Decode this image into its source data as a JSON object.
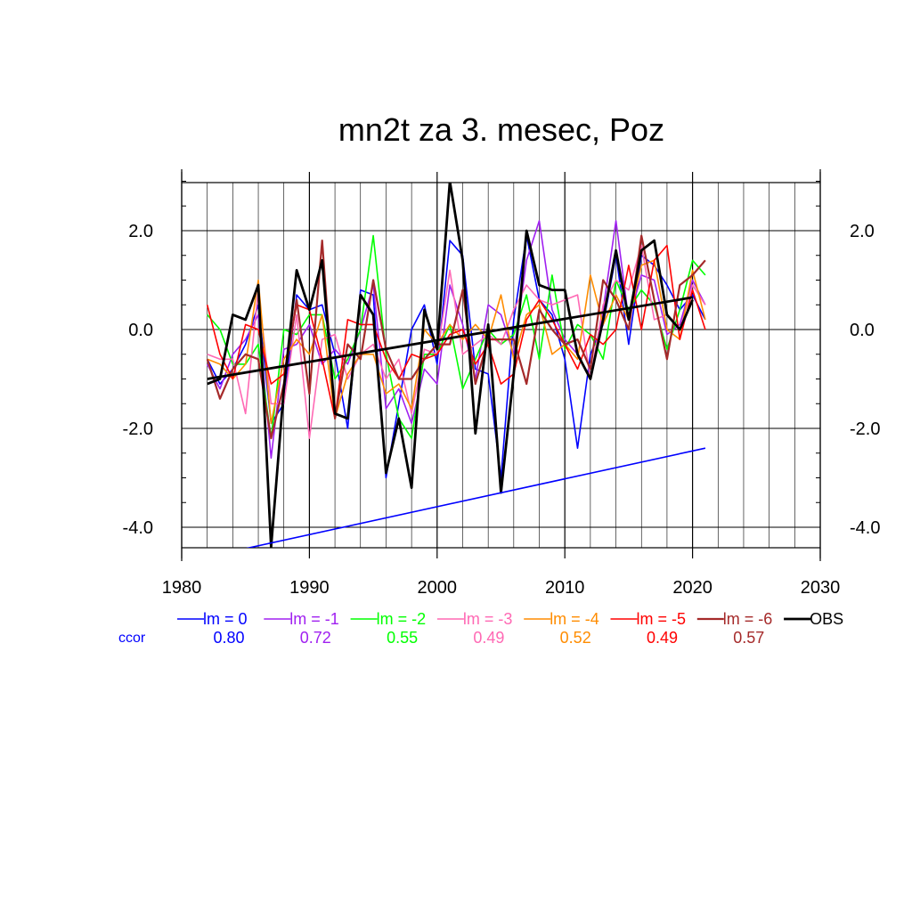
{
  "chart_data": {
    "type": "line",
    "title": "mn2t za 3. mesec, Poz",
    "xlabel": "",
    "ylabel": "",
    "xlim": [
      1980,
      2030
    ],
    "ylim": [
      -4.4,
      3.0
    ],
    "x_ticks": [
      "1980",
      "1990",
      "2000",
      "2010",
      "2020",
      "2030"
    ],
    "y_ticks": [
      "2.0",
      "0.0",
      "-2.0",
      "-4.0"
    ],
    "y_tick_values": [
      2.0,
      0.0,
      -2.0,
      -4.0
    ],
    "grid": true,
    "legend_position": "bottom",
    "ccor_label": "ccor",
    "ccor_color": "#0000ff",
    "x": [
      1982,
      1983,
      1984,
      1985,
      1986,
      1987,
      1988,
      1989,
      1990,
      1991,
      1992,
      1993,
      1994,
      1995,
      1996,
      1997,
      1998,
      1999,
      2000,
      2001,
      2002,
      2003,
      2004,
      2005,
      2006,
      2007,
      2008,
      2009,
      2010,
      2011,
      2012,
      2013,
      2014,
      2015,
      2016,
      2017,
      2018,
      2019,
      2020,
      2021
    ],
    "series": [
      {
        "name": "lm = 0",
        "ccor": "0.80",
        "color": "#0000ff",
        "width": 1.6,
        "values": [
          -0.6,
          -1.1,
          -0.8,
          -0.3,
          0.5,
          -1.9,
          -1.5,
          0.7,
          0.4,
          0.5,
          -0.5,
          -2.0,
          0.8,
          0.7,
          -3.0,
          -1.5,
          0.0,
          0.5,
          -0.7,
          1.8,
          1.5,
          -0.8,
          -0.9,
          -3.0,
          0.2,
          1.9,
          0.6,
          0.3,
          -0.6,
          -2.4,
          -0.5,
          0.1,
          1.5,
          -0.3,
          1.5,
          1.3,
          0.9,
          0.4,
          0.7,
          0.2
        ]
      },
      {
        "name": "lm = -1",
        "ccor": "0.72",
        "color": "#a020f0",
        "width": 1.6,
        "values": [
          -0.7,
          -1.2,
          -0.5,
          -0.2,
          0.3,
          -2.6,
          -0.4,
          -0.3,
          0.1,
          -0.7,
          -0.4,
          -0.7,
          0.0,
          0.9,
          -1.6,
          -1.2,
          -1.9,
          -0.8,
          -1.1,
          0.9,
          0.1,
          -1.0,
          0.5,
          0.3,
          -0.5,
          1.4,
          2.2,
          0.4,
          -0.2,
          -0.5,
          -1.0,
          0.4,
          2.2,
          0.2,
          1.1,
          1.0,
          -0.1,
          0.1,
          1.0,
          0.5
        ]
      },
      {
        "name": "lm = -2",
        "ccor": "0.55",
        "color": "#00ff00",
        "width": 1.6,
        "values": [
          0.3,
          0.0,
          -0.7,
          -0.7,
          -0.3,
          -2.2,
          0.0,
          -0.1,
          0.3,
          0.3,
          -1.0,
          -0.6,
          0.0,
          1.9,
          -0.5,
          -1.8,
          -2.2,
          -0.5,
          -0.5,
          0.1,
          -1.2,
          -0.6,
          0.0,
          -0.3,
          -0.1,
          0.7,
          -0.6,
          1.1,
          -0.4,
          0.1,
          -0.1,
          -0.6,
          1.0,
          0.4,
          0.8,
          0.5,
          -0.4,
          0.4,
          1.4,
          1.1
        ]
      },
      {
        "name": "lm = -3",
        "ccor": "0.49",
        "color": "#ff69b4",
        "width": 1.6,
        "values": [
          -0.5,
          -0.6,
          -0.6,
          -1.7,
          0.8,
          -1.5,
          -1.5,
          0.3,
          -2.2,
          -0.2,
          -0.1,
          -1.0,
          -0.5,
          -0.3,
          -1.0,
          -0.6,
          -1.7,
          -0.4,
          -0.5,
          1.2,
          -0.5,
          -0.3,
          -0.1,
          -0.3,
          0.4,
          0.9,
          0.6,
          0.5,
          0.6,
          0.7,
          -1.0,
          0.5,
          1.0,
          0.8,
          1.7,
          0.2,
          0.3,
          0.0,
          0.9,
          0.5
        ]
      },
      {
        "name": "lm = -4",
        "ccor": "0.52",
        "color": "#ff8c00",
        "width": 1.6,
        "values": [
          -0.6,
          -0.7,
          -1.0,
          -0.7,
          1.0,
          -1.9,
          -0.6,
          -0.2,
          -0.5,
          0.3,
          -1.8,
          -0.9,
          -0.5,
          -0.5,
          -1.3,
          -1.1,
          -1.6,
          0.0,
          -0.3,
          0.1,
          -0.2,
          0.1,
          -0.2,
          0.7,
          -0.6,
          0.3,
          0.5,
          -0.5,
          -0.3,
          -0.6,
          1.1,
          0.1,
          0.7,
          0.2,
          1.3,
          1.4,
          0.0,
          -0.2,
          1.2,
          0.2
        ]
      },
      {
        "name": "lm = -5",
        "ccor": "0.49",
        "color": "#ff0000",
        "width": 1.6,
        "values": [
          0.5,
          -0.5,
          -1.0,
          0.1,
          0.0,
          -1.1,
          -0.9,
          0.5,
          0.4,
          -0.6,
          -1.8,
          0.2,
          0.1,
          0.1,
          -0.6,
          -1.0,
          -0.5,
          -0.6,
          -0.5,
          -0.1,
          0.0,
          -0.7,
          -0.3,
          -1.1,
          -0.9,
          0.2,
          0.6,
          0.2,
          -0.3,
          -0.8,
          -0.1,
          -0.3,
          0.0,
          1.3,
          0.0,
          1.4,
          1.7,
          -0.2,
          0.8,
          0.0
        ]
      },
      {
        "name": "lm = -6",
        "ccor": "0.57",
        "color": "#a52a2a",
        "width": 2.2,
        "values": [
          -0.6,
          -1.4,
          -0.8,
          -0.5,
          -0.6,
          -2.2,
          -1.1,
          0.6,
          -1.3,
          1.8,
          -1.8,
          -0.3,
          -0.6,
          1.0,
          -0.4,
          -1.0,
          -1.0,
          -0.6,
          -0.3,
          -0.3,
          0.8,
          -1.1,
          -0.2,
          -0.2,
          -0.2,
          -1.1,
          0.4,
          0.0,
          -0.3,
          -0.2,
          -0.8,
          1.0,
          0.6,
          0.0,
          1.9,
          0.6,
          -0.6,
          0.9,
          1.1,
          1.4
        ]
      },
      {
        "name": "OBS",
        "ccor": "",
        "color": "#000000",
        "width": 2.8,
        "values": [
          -1.1,
          -1.0,
          0.3,
          0.2,
          0.9,
          -4.4,
          -1.2,
          1.2,
          0.4,
          1.4,
          -1.7,
          -1.8,
          0.7,
          0.3,
          -2.9,
          -1.8,
          -3.2,
          0.4,
          -0.4,
          3.0,
          1.4,
          -2.1,
          0.1,
          -3.3,
          -0.9,
          2.0,
          0.9,
          0.8,
          0.8,
          -0.5,
          -1.0,
          0.2,
          1.6,
          0.2,
          1.6,
          1.8,
          0.3,
          0.0,
          0.6,
          null
        ]
      }
    ],
    "trend_lines": [
      {
        "color": "#000000",
        "width": 2.8,
        "x": [
          1982,
          2020
        ],
        "y": [
          -1.0,
          0.65
        ]
      },
      {
        "color": "#0000ff",
        "width": 1.6,
        "x": [
          1982,
          2021
        ],
        "y": [
          -4.6,
          -2.4
        ]
      }
    ]
  }
}
